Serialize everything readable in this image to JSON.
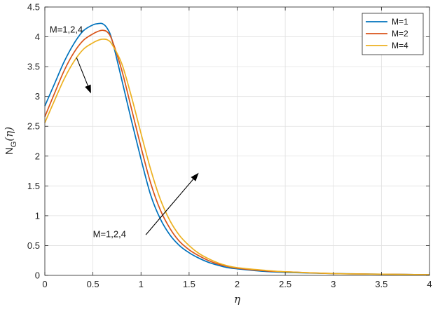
{
  "chart_data": {
    "type": "line",
    "xlabel": "η",
    "ylabel_main": "N",
    "ylabel_sub": "G",
    "ylabel_arg": "(η)",
    "xlim": [
      0,
      4
    ],
    "ylim": [
      0,
      4.5
    ],
    "grid": true,
    "legend_position": "top-right",
    "x_ticks": [
      0,
      0.5,
      1,
      1.5,
      2,
      2.5,
      3,
      3.5,
      4
    ],
    "x_tick_labels": [
      "0",
      "0.5",
      "1",
      "1.5",
      "2",
      "2.5",
      "3",
      "3.5",
      "4"
    ],
    "y_ticks": [
      0,
      0.5,
      1,
      1.5,
      2,
      2.5,
      3,
      3.5,
      4,
      4.5
    ],
    "y_tick_labels": [
      "0",
      "0.5",
      "1",
      "1.5",
      "2",
      "2.5",
      "3",
      "3.5",
      "4",
      "4.5"
    ],
    "x": [
      0,
      0.1,
      0.2,
      0.3,
      0.4,
      0.5,
      0.55,
      0.6,
      0.65,
      0.7,
      0.8,
      0.9,
      1.0,
      1.1,
      1.2,
      1.3,
      1.4,
      1.5,
      1.6,
      1.7,
      1.8,
      1.9,
      2.0,
      2.25,
      2.5,
      3.0,
      3.5,
      4.0
    ],
    "series": [
      {
        "name": "M=1",
        "color": "#0072BD",
        "values": [
          2.84,
          3.21,
          3.58,
          3.88,
          4.1,
          4.2,
          4.22,
          4.22,
          4.14,
          3.94,
          3.28,
          2.6,
          1.95,
          1.35,
          0.95,
          0.68,
          0.5,
          0.38,
          0.29,
          0.22,
          0.17,
          0.13,
          0.11,
          0.07,
          0.05,
          0.03,
          0.02,
          0.01
        ]
      },
      {
        "name": "M=2",
        "color": "#D95319",
        "values": [
          2.66,
          3.05,
          3.43,
          3.73,
          3.94,
          4.05,
          4.09,
          4.11,
          4.08,
          3.94,
          3.44,
          2.8,
          2.15,
          1.55,
          1.1,
          0.79,
          0.57,
          0.43,
          0.33,
          0.25,
          0.19,
          0.15,
          0.12,
          0.08,
          0.06,
          0.03,
          0.02,
          0.01
        ]
      },
      {
        "name": "M=4",
        "color": "#EDB120",
        "values": [
          2.56,
          2.93,
          3.29,
          3.58,
          3.79,
          3.9,
          3.94,
          3.96,
          3.95,
          3.87,
          3.55,
          3.0,
          2.38,
          1.78,
          1.28,
          0.92,
          0.67,
          0.5,
          0.37,
          0.28,
          0.21,
          0.16,
          0.13,
          0.09,
          0.06,
          0.03,
          0.02,
          0.01
        ]
      }
    ],
    "annotations": [
      {
        "text": "M=1,2,4",
        "label_x": 0.05,
        "label_y": 4.07,
        "arrow_from": [
          0.33,
          3.65
        ],
        "arrow_to": [
          0.48,
          3.05
        ]
      },
      {
        "text": "M=1,2,4",
        "label_x": 0.5,
        "label_y": 0.64,
        "arrow_from": [
          1.05,
          0.68
        ],
        "arrow_to": [
          1.6,
          1.72
        ]
      }
    ]
  }
}
